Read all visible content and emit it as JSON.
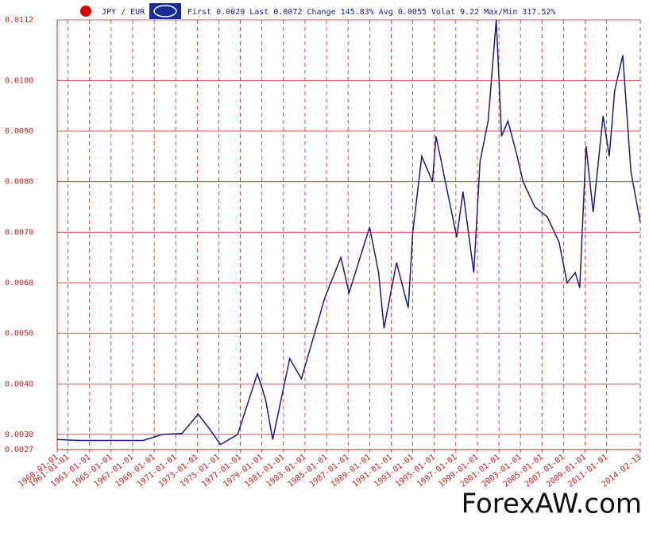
{
  "chart_data": {
    "type": "line",
    "title": "JPY / EUR",
    "stats": [
      "First 0.0029",
      "Last 0.0072",
      "Change 145.83%",
      "Avg 0.0055",
      "Volat 9.22",
      "Max/Min 317.52%"
    ],
    "watermark": "ForexAW.com",
    "x": [
      "1960-01-01",
      "1962-02-01",
      "1968-01-01",
      "1969-10-01",
      "1971-08-01",
      "1973-02-01",
      "1974-03-01",
      "1975-03-01",
      "1976-10-01",
      "1978-08-01",
      "1979-05-01",
      "1980-01-01",
      "1981-08-01",
      "1982-09-01",
      "1984-03-01",
      "1984-11-01",
      "1986-05-01",
      "1987-02-01",
      "1989-01-01",
      "1989-11-01",
      "1990-05-01",
      "1991-07-01",
      "1992-08-01",
      "1993-01-01",
      "1993-11-01",
      "1994-11-01",
      "1995-03-01",
      "1997-02-01",
      "1997-09-01",
      "1998-09-01",
      "1999-04-01",
      "2000-01-01",
      "2000-10-01",
      "2001-04-01",
      "2001-11-01",
      "2002-08-01",
      "2003-04-01",
      "2004-05-01",
      "2005-07-01",
      "2006-08-01",
      "2007-05-01",
      "2008-02-01",
      "2008-07-01",
      "2009-02-01",
      "2009-10-01",
      "2010-09-01",
      "2011-04-01",
      "2011-10-01",
      "2012-07-01",
      "2013-04-01",
      "2014-02-13"
    ],
    "series": [
      {
        "name": "JPY / EUR",
        "color": "#1a1a8c",
        "values": [
          0.0029,
          0.00288,
          0.00288,
          0.003,
          0.00302,
          0.0034,
          0.0031,
          0.0028,
          0.003,
          0.0042,
          0.0037,
          0.0029,
          0.0045,
          0.0041,
          0.0052,
          0.0057,
          0.0065,
          0.0058,
          0.0071,
          0.0062,
          0.0051,
          0.0064,
          0.0055,
          0.007,
          0.0085,
          0.008,
          0.0089,
          0.0069,
          0.0078,
          0.0062,
          0.0084,
          0.0092,
          0.0112,
          0.0089,
          0.0092,
          0.0086,
          0.008,
          0.0075,
          0.0073,
          0.0068,
          0.006,
          0.0062,
          0.0059,
          0.0087,
          0.0074,
          0.0093,
          0.0085,
          0.0098,
          0.0105,
          0.0082,
          0.0072
        ]
      }
    ],
    "xlim": [
      "1960-01-01",
      "2014-02-13"
    ],
    "xticks": [
      "1960-01-01",
      "1961-01-01",
      "1963-01-01",
      "1965-01-01",
      "1967-01-01",
      "1969-01-01",
      "1971-01-01",
      "1973-01-01",
      "1975-01-01",
      "1977-01-01",
      "1979-01-01",
      "1981-01-01",
      "1983-01-01",
      "1985-01-01",
      "1987-01-01",
      "1989-01-01",
      "1991-01-01",
      "1993-01-01",
      "1995-01-01",
      "1997-01-01",
      "1999-01-01",
      "2001-01-01",
      "2003-01-01",
      "2005-01-01",
      "2007-01-01",
      "2009-01-01",
      "2011-01-01",
      "2014-02-13"
    ],
    "ylim": [
      0.0027,
      0.0112
    ],
    "yticks": [
      0.0027,
      {
        "value": 0.003,
        "label": "0.0030"
      },
      {
        "value": 0.004,
        "label": "0.0040"
      },
      {
        "value": 0.005,
        "label": "0.0050"
      },
      {
        "value": 0.006,
        "label": "0.0060"
      },
      {
        "value": 0.007,
        "label": "0.0070"
      },
      {
        "value": 0.008,
        "label": "0.0080"
      },
      {
        "value": 0.009,
        "label": "0.0090"
      },
      {
        "value": 0.01,
        "label": "0.0100"
      },
      0.0112
    ],
    "grid": true,
    "grid_color": "#cc2222"
  }
}
